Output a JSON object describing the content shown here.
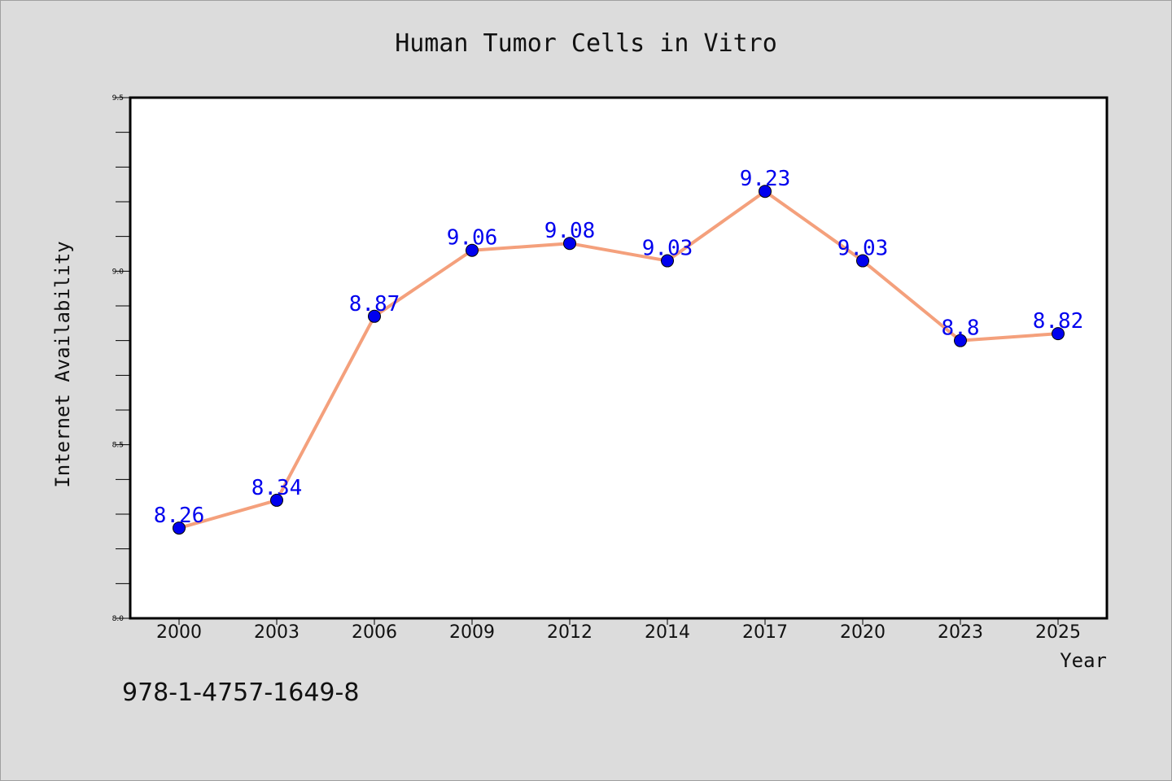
{
  "chart_data": {
    "type": "line",
    "title": "Human Tumor Cells in Vitro",
    "xlabel": "Year",
    "ylabel": "Internet Availability",
    "categories": [
      "2000",
      "2003",
      "2006",
      "2009",
      "2012",
      "2014",
      "2017",
      "2020",
      "2023",
      "2025"
    ],
    "series": [
      {
        "values": [
          8.26,
          8.34,
          8.87,
          9.06,
          9.08,
          9.03,
          9.23,
          9.03,
          8.8,
          8.82
        ]
      }
    ],
    "ylim": [
      8.0,
      9.5
    ],
    "yticks": [
      "8.0",
      "8.5",
      "9.0",
      "9.5"
    ],
    "data_labels": [
      "8.26",
      "8.34",
      "8.87",
      "9.06",
      "9.08",
      "9.03",
      "9.23",
      "9.03",
      "8.8",
      "8.82"
    ],
    "grid": false,
    "colors": {
      "line": "#f4a07c",
      "marker": "#0000ee",
      "label": "#0000ee",
      "background": "#dcdcdc",
      "plot_background": "#ffffff"
    }
  },
  "footer": {
    "isbn": "978-1-4757-1649-8"
  }
}
